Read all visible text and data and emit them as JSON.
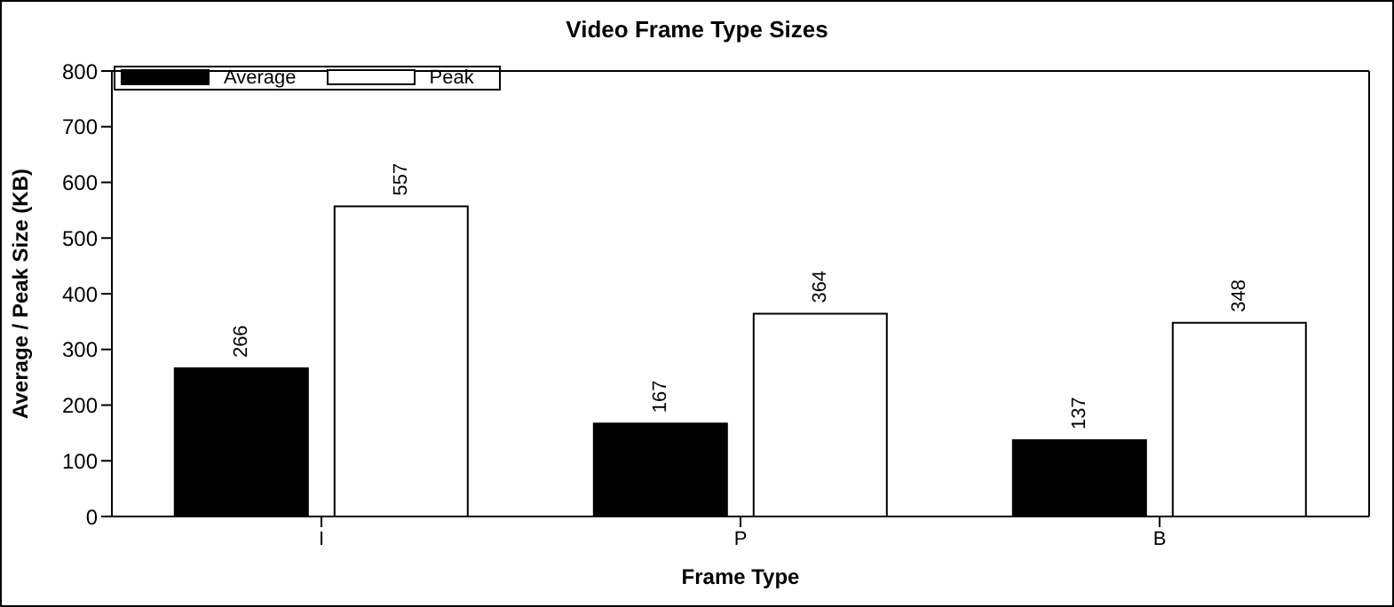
{
  "chart_data": {
    "type": "bar",
    "title": "Video Frame Type Sizes",
    "xlabel": "Frame Type",
    "ylabel": "Average / Peak Size (KB)",
    "categories": [
      "I",
      "P",
      "B"
    ],
    "series": [
      {
        "name": "Average",
        "color": "#000000",
        "values": [
          266,
          167,
          137
        ]
      },
      {
        "name": "Peak",
        "color": "#ffffff",
        "values": [
          557,
          364,
          348
        ]
      }
    ],
    "ylim": [
      0,
      800
    ],
    "yticks": [
      0,
      100,
      200,
      300,
      400,
      500,
      600,
      700,
      800
    ],
    "data_labels": true,
    "legend": "top left",
    "grid": false
  }
}
